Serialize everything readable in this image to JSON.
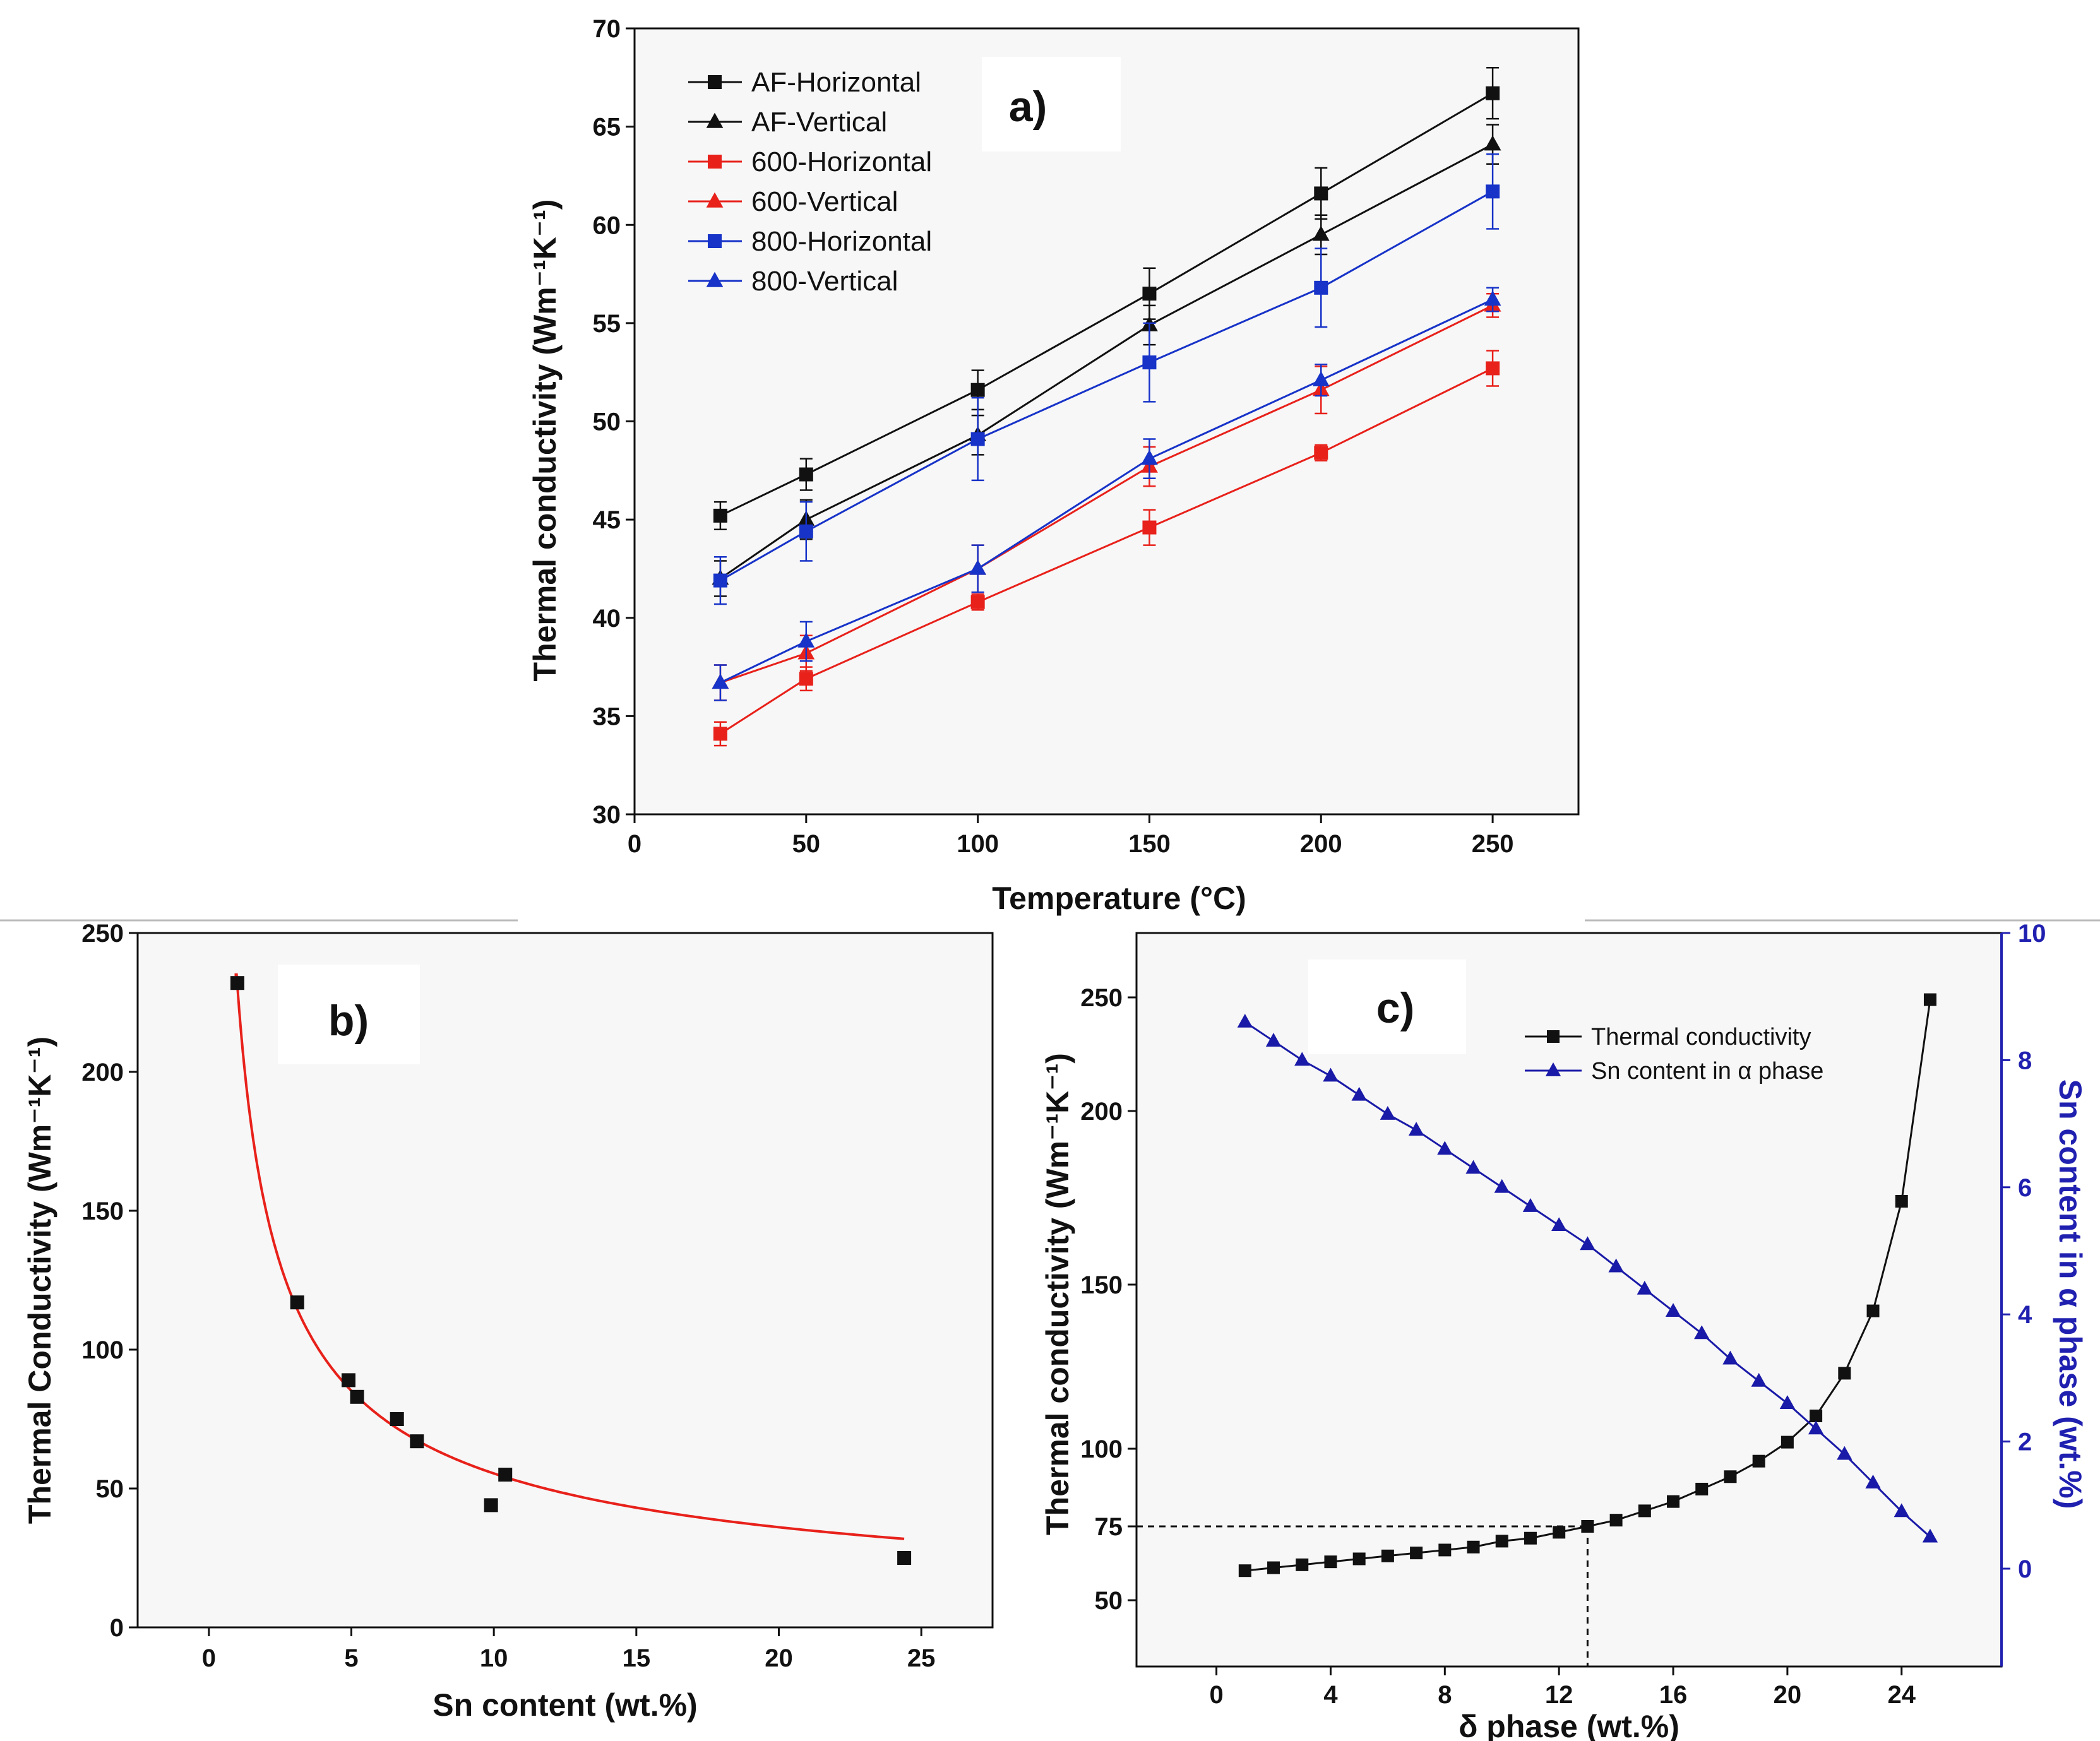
{
  "chart_data": [
    {
      "panel": "a)",
      "type": "line",
      "xlabel": "Temperature (°C)",
      "ylabel": "Thermal conductivity (Wm⁻¹K⁻¹)",
      "xlim": [
        0,
        275
      ],
      "ylim": [
        30,
        70
      ],
      "xticks": [
        0,
        50,
        100,
        150,
        200,
        250
      ],
      "yticks": [
        30,
        35,
        40,
        45,
        50,
        55,
        60,
        65,
        70
      ],
      "legend_position": "top-left",
      "x": [
        25,
        50,
        100,
        150,
        200,
        250
      ],
      "series": [
        {
          "name": "AF-Horizontal",
          "color": "#111111",
          "marker": "square",
          "values": [
            45.2,
            47.3,
            51.6,
            56.5,
            61.6,
            66.7
          ],
          "errors": [
            0.7,
            0.8,
            1.0,
            1.3,
            1.3,
            1.3
          ]
        },
        {
          "name": "AF-Vertical",
          "color": "#111111",
          "marker": "triangle",
          "values": [
            42.0,
            45.0,
            49.3,
            54.9,
            59.5,
            64.1
          ],
          "errors": [
            0.9,
            1.0,
            1.0,
            1.0,
            1.0,
            1.0
          ]
        },
        {
          "name": "600-Horizontal",
          "color": "#e8211b",
          "marker": "square",
          "values": [
            34.1,
            36.9,
            40.8,
            44.6,
            48.4,
            52.7
          ],
          "errors": [
            0.6,
            0.6,
            0.4,
            0.9,
            0.4,
            0.9
          ]
        },
        {
          "name": "600-Vertical",
          "color": "#e8211b",
          "marker": "triangle",
          "values": [
            36.7,
            38.2,
            42.5,
            47.7,
            51.6,
            55.9
          ],
          "errors": [
            0.9,
            0.9,
            1.2,
            1.0,
            1.2,
            0.6
          ]
        },
        {
          "name": "800-Horizontal",
          "color": "#1733c8",
          "marker": "square",
          "values": [
            41.9,
            44.4,
            49.1,
            53.0,
            56.8,
            61.7
          ],
          "errors": [
            1.2,
            1.5,
            2.1,
            2.0,
            2.0,
            1.9
          ]
        },
        {
          "name": "800-Vertical",
          "color": "#1733c8",
          "marker": "triangle",
          "values": [
            36.7,
            38.8,
            42.5,
            48.1,
            52.1,
            56.2
          ],
          "errors": [
            0.9,
            1.0,
            1.2,
            1.0,
            0.8,
            0.6
          ]
        }
      ]
    },
    {
      "panel": "b)",
      "type": "scatter",
      "xlabel": "Sn content (wt.%)",
      "ylabel": "Thermal Conductivity (Wm⁻¹K⁻¹)",
      "xlim": [
        -2.5,
        27.5
      ],
      "ylim": [
        0,
        250
      ],
      "xticks": [
        0,
        5,
        10,
        15,
        20,
        25
      ],
      "yticks": [
        0,
        50,
        100,
        150,
        200,
        250
      ],
      "points": {
        "name": "",
        "color": "#111111",
        "marker": "square",
        "x": [
          1.0,
          3.1,
          4.9,
          5.2,
          6.6,
          7.3,
          9.9,
          10.4,
          24.4
        ],
        "y": [
          232,
          117,
          89,
          83,
          75,
          67,
          44,
          55,
          25
        ]
      },
      "fit": {
        "name": "",
        "color": "#e8211b",
        "x_range": [
          0.9,
          24.4
        ]
      }
    },
    {
      "panel": "c)",
      "type": "line",
      "xlabel": "δ phase (wt.%)",
      "ylabel": "Thermal conductivity (Wm⁻¹K⁻¹)",
      "ylabel_right": "Sn content in α phase (wt.%)",
      "xlim": [
        -2.8,
        27.5
      ],
      "ylim": [
        40,
        270
      ],
      "ylim_right": [
        -1.3,
        10
      ],
      "xticks": [
        0,
        4,
        8,
        12,
        16,
        20,
        24
      ],
      "yticks": [
        50,
        75,
        100,
        150,
        200,
        250
      ],
      "yticks_right": [
        0,
        2,
        4,
        6,
        8,
        10
      ],
      "legend_position": "top-right",
      "reference_lines": {
        "x": 13,
        "y": 75
      },
      "x": [
        1,
        2,
        3,
        4,
        5,
        6,
        7,
        8,
        9,
        10,
        11,
        12,
        13,
        14,
        15,
        16,
        17,
        18,
        19,
        20,
        21,
        22,
        23,
        24,
        25
      ],
      "series": [
        {
          "name": "Thermal conductivity",
          "color": "#111111",
          "marker": "square",
          "axis": "left",
          "values": [
            60,
            61,
            62,
            63,
            64,
            65,
            66,
            67,
            68,
            70,
            71,
            73,
            75,
            77,
            80,
            83,
            87,
            91,
            96,
            102,
            110,
            123,
            142,
            174,
            249
          ]
        },
        {
          "name": "Sn content in α phase",
          "color": "#1a1aa8",
          "marker": "triangle",
          "axis": "right",
          "values": [
            8.6,
            8.3,
            8.0,
            7.75,
            7.45,
            7.15,
            6.9,
            6.6,
            6.3,
            6.0,
            5.7,
            5.4,
            5.1,
            4.75,
            4.4,
            4.05,
            3.7,
            3.3,
            2.95,
            2.6,
            2.2,
            1.8,
            1.35,
            0.9,
            0.5
          ]
        }
      ]
    }
  ]
}
